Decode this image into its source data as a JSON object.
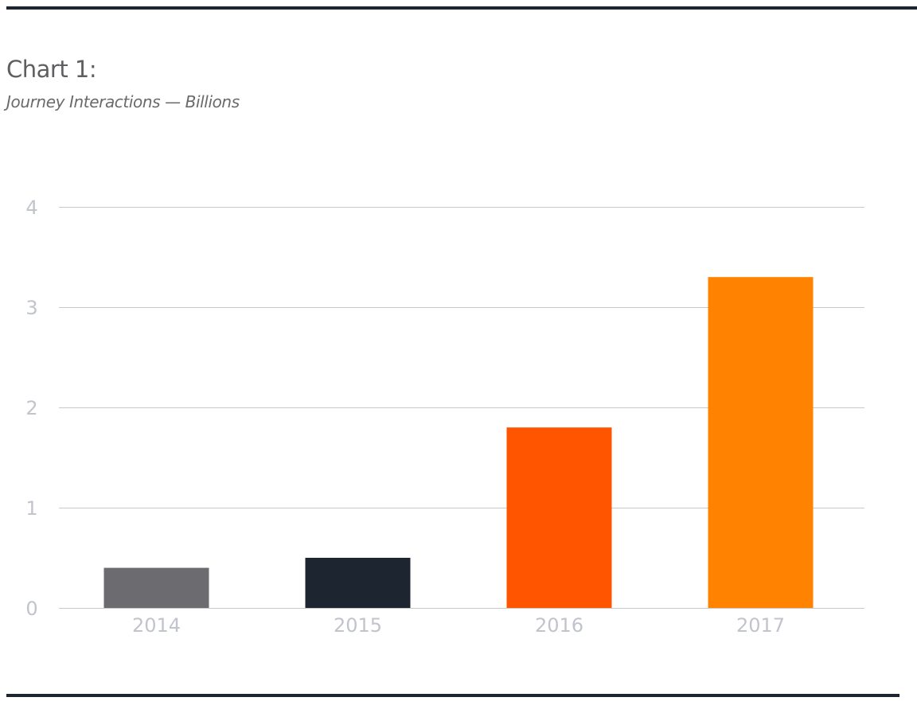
{
  "header": {
    "title": "Chart 1:",
    "subtitle": "Journey Interactions — Billions"
  },
  "chart_data": {
    "type": "bar",
    "title": "Chart 1:",
    "subtitle": "Journey Interactions — Billions",
    "xlabel": "",
    "ylabel": "",
    "categories": [
      "2014",
      "2015",
      "2016",
      "2017"
    ],
    "values": [
      0.4,
      0.5,
      1.8,
      3.3
    ],
    "colors": [
      "#6b6b70",
      "#1d2530",
      "#ff5500",
      "#ff8200"
    ],
    "yticks": [
      0,
      1,
      2,
      3,
      4
    ],
    "ylim": [
      0,
      4
    ],
    "grid": true,
    "legend": "none",
    "axis_label_color": "#c2c4cc",
    "gridline_color": "#c8c8c8"
  }
}
